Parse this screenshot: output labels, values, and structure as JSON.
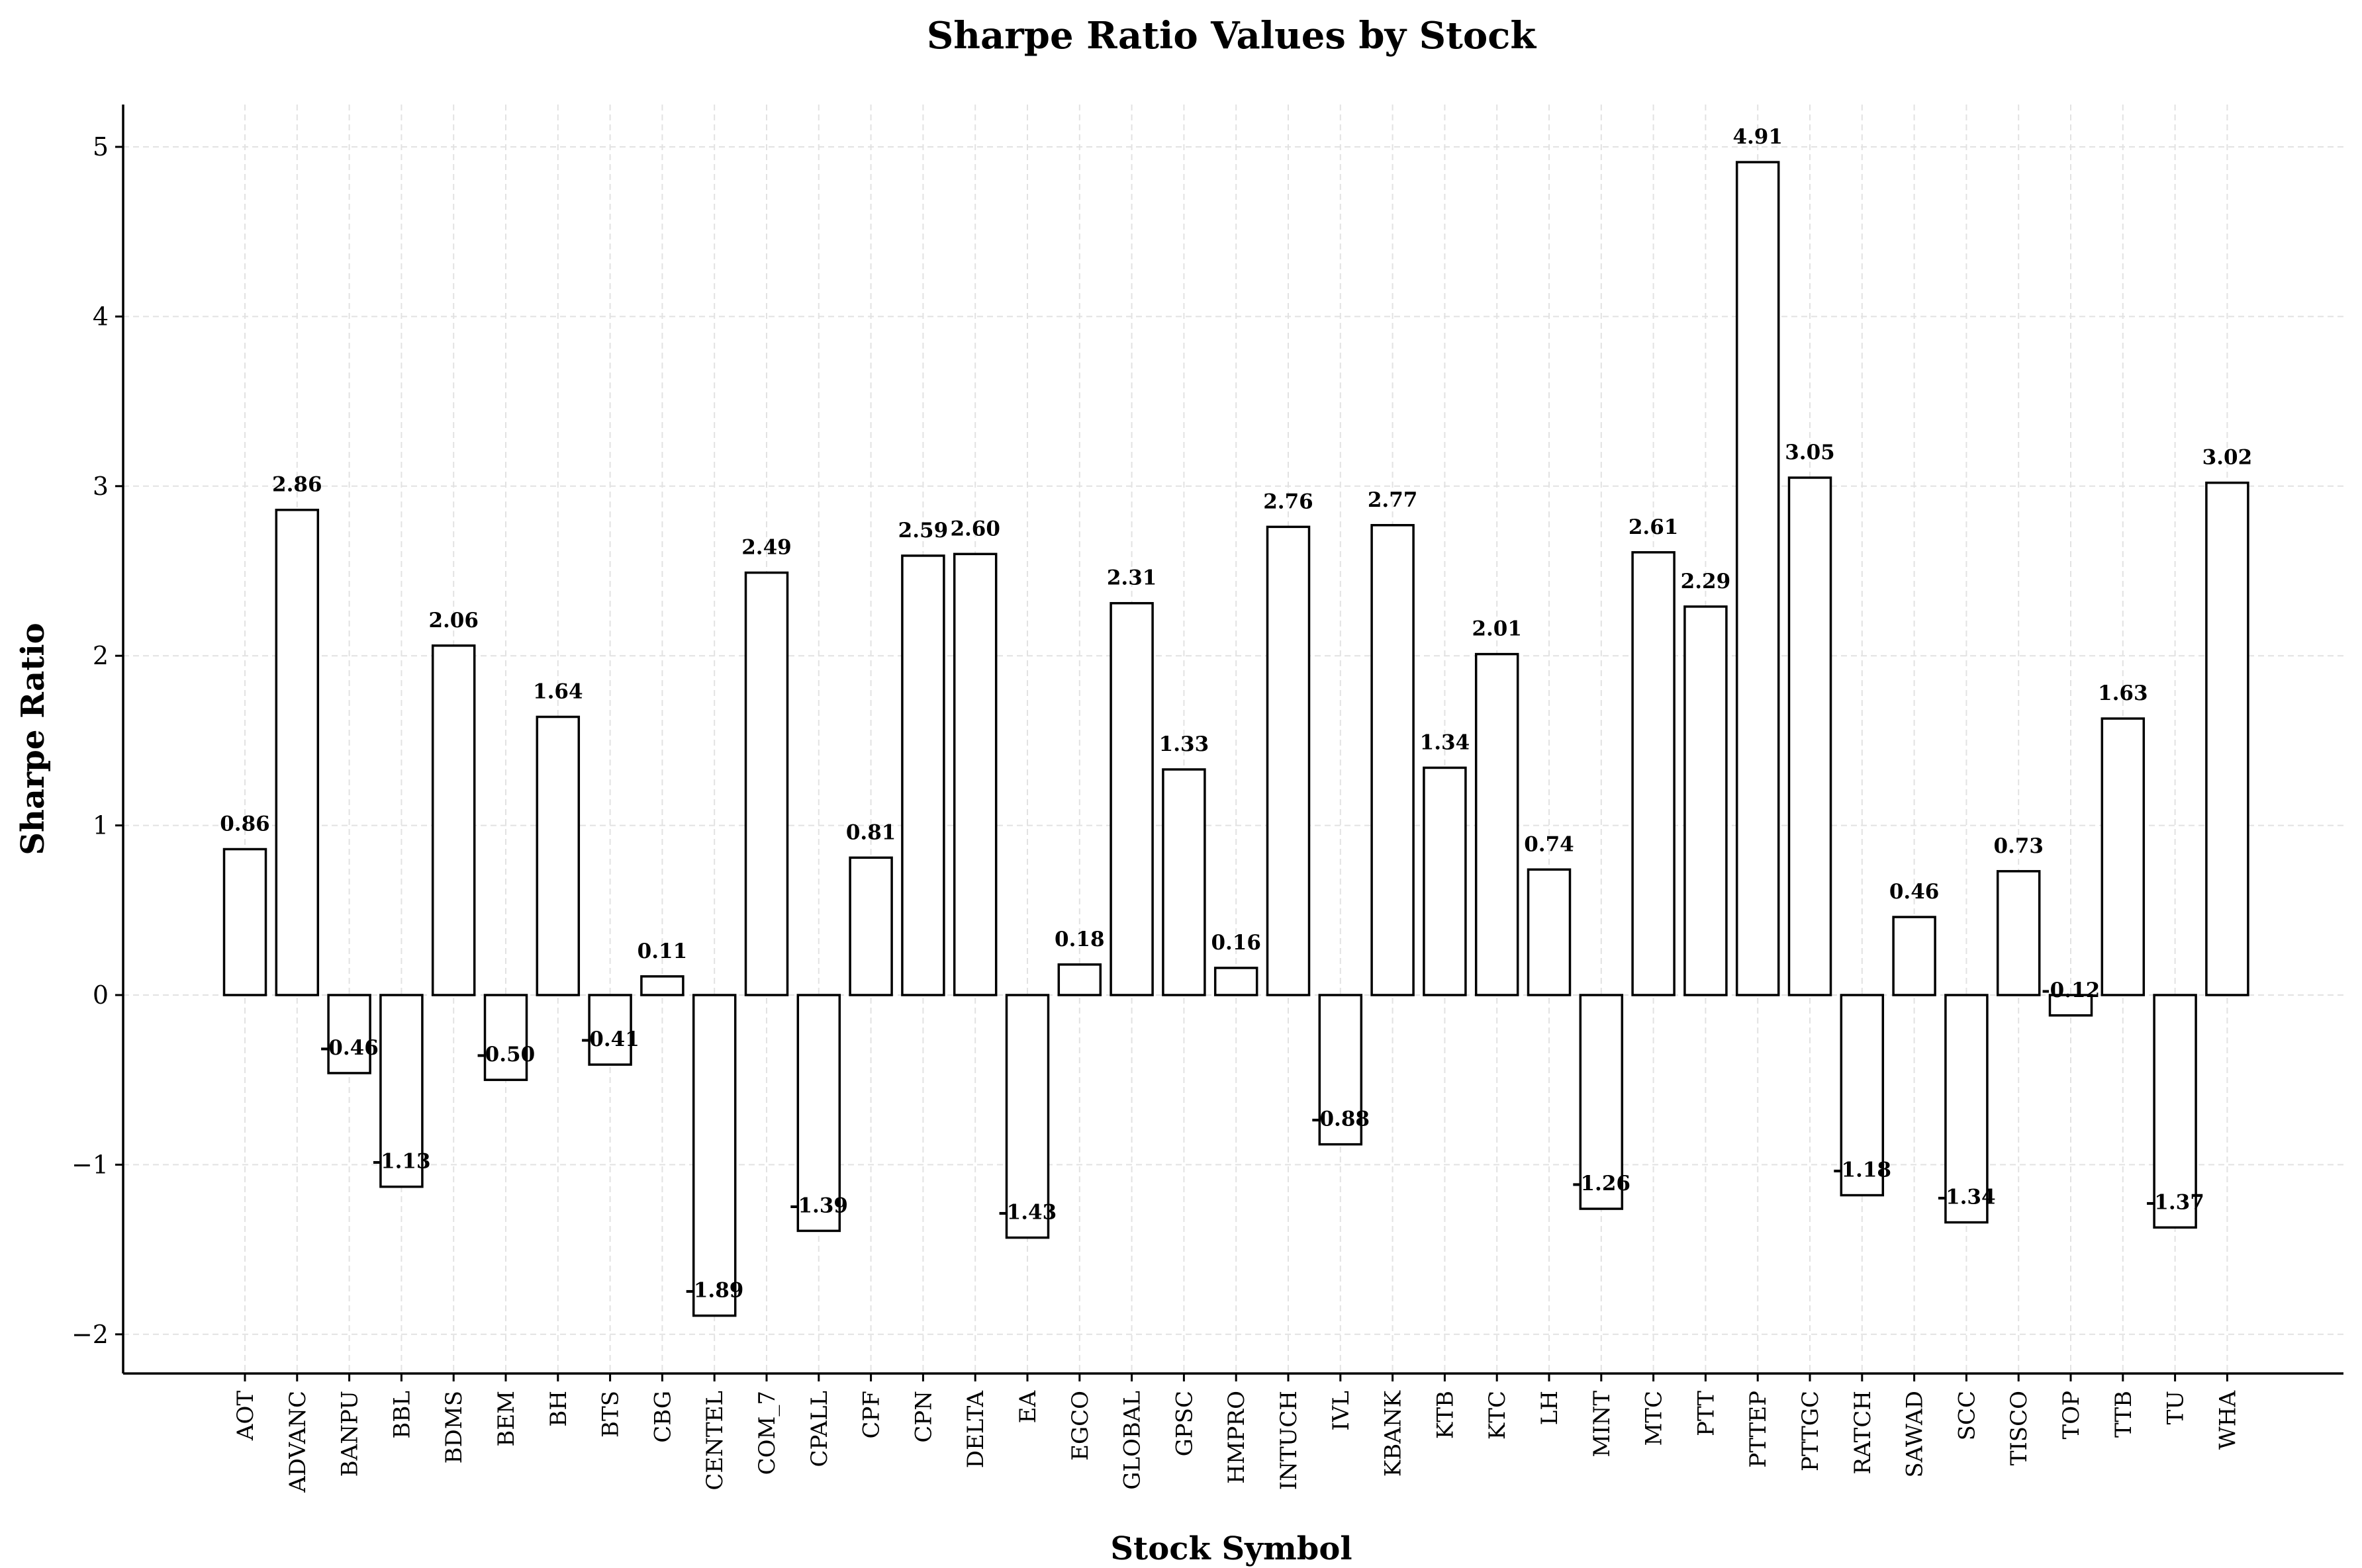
{
  "chart_data": {
    "type": "bar",
    "title": "Sharpe Ratio Values by Stock",
    "xlabel": "Stock Symbol",
    "ylabel": "Sharpe Ratio",
    "ylim": [
      -2.23,
      5.25
    ],
    "yticks": [
      -2,
      -1,
      0,
      1,
      2,
      3,
      4,
      5
    ],
    "ytick_labels": [
      "−2",
      "−1",
      "0",
      "1",
      "2",
      "3",
      "4",
      "5"
    ],
    "grid": true,
    "bar_fill": "#ffffff",
    "bar_edge": "#000000",
    "categories": [
      "AOT",
      "ADVANC",
      "BANPU",
      "BBL",
      "BDMS",
      "BEM",
      "BH",
      "BTS",
      "CBG",
      "CENTEL",
      "COM_7",
      "CPALL",
      "CPF",
      "CPN",
      "DELTA",
      "EA",
      "EGCO",
      "GLOBAL",
      "GPSC",
      "HMPRO",
      "INTUCH",
      "IVL",
      "KBANK",
      "KTB",
      "KTC",
      "LH",
      "MINT",
      "MTC",
      "PTT",
      "PTTEP",
      "PTTGC",
      "RATCH",
      "SAWAD",
      "SCC",
      "TISCO",
      "TOP",
      "TTB",
      "TU",
      "WHA"
    ],
    "values": [
      0.86,
      2.86,
      -0.46,
      -1.13,
      2.06,
      -0.5,
      1.64,
      -0.41,
      0.11,
      -1.89,
      2.49,
      -1.39,
      0.81,
      2.59,
      2.6,
      -1.43,
      0.18,
      2.31,
      1.33,
      0.16,
      2.76,
      -0.88,
      2.77,
      1.34,
      2.01,
      0.74,
      -1.26,
      2.61,
      2.29,
      4.91,
      3.05,
      -1.18,
      0.46,
      -1.34,
      0.73,
      -0.12,
      1.63,
      -1.37,
      3.02
    ],
    "value_labels": [
      "0.86",
      "2.86",
      "-0.46",
      "-1.13",
      "2.06",
      "-0.50",
      "1.64",
      "-0.41",
      "0.11",
      "-1.89",
      "2.49",
      "-1.39",
      "0.81",
      "2.59",
      "2.60",
      "-1.43",
      "0.18",
      "2.31",
      "1.33",
      "0.16",
      "2.76",
      "-0.88",
      "2.77",
      "1.34",
      "2.01",
      "0.74",
      "-1.26",
      "2.61",
      "2.29",
      "4.91",
      "3.05",
      "-1.18",
      "0.46",
      "-1.34",
      "0.73",
      "-0.12",
      "1.63",
      "-1.37",
      "3.02"
    ]
  }
}
